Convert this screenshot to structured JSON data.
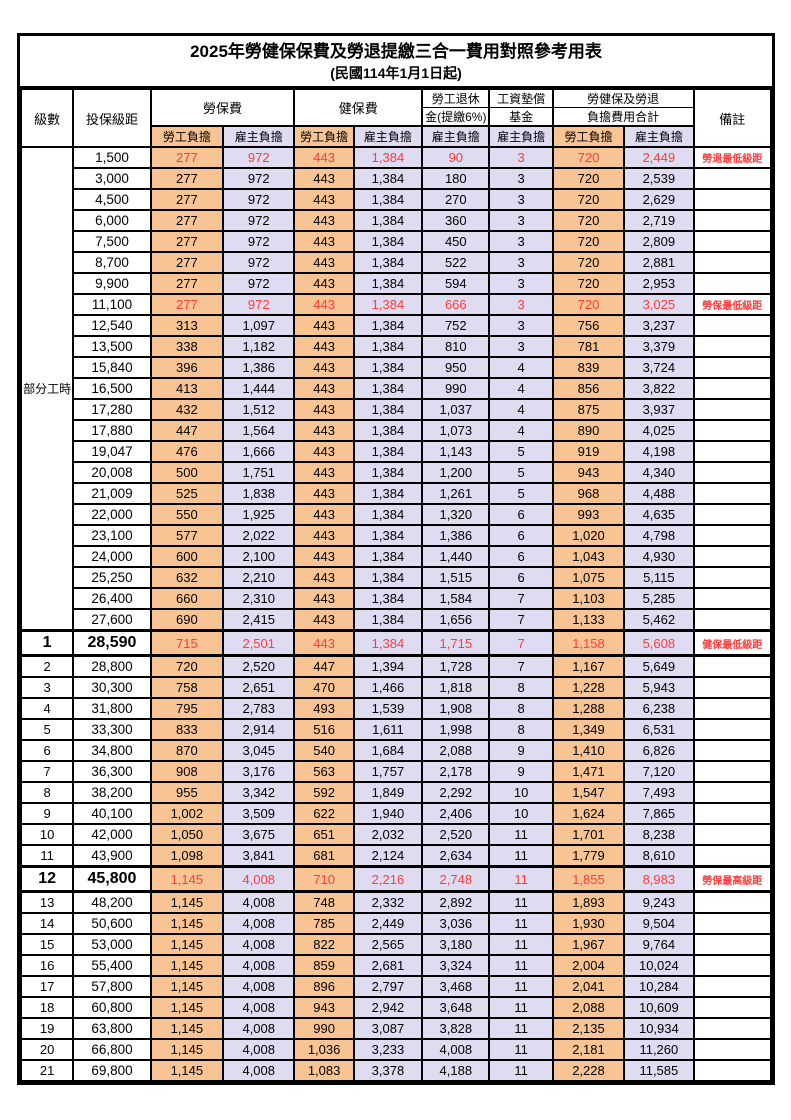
{
  "title": "2025年勞健保保費及勞退提繳三合一費用對照參考用表",
  "subtitle": "(民國114年1月1日起)",
  "header": {
    "level": "級數",
    "bracket": "投保級距",
    "labor_ins": "勞保費",
    "health_ins": "健保費",
    "pension_line1": "勞工退休",
    "pension_line2": "金(提繳6%)",
    "fund_line1": "工資墊償",
    "fund_line2": "基金",
    "total_line1": "勞健保及勞退",
    "total_line2": "負擔費用合計",
    "remark": "備註",
    "employee": "勞工負擔",
    "employer": "雇主負擔"
  },
  "part_time": {
    "label": "部分工時",
    "span": 23
  },
  "colors": {
    "employee_bg": "#F8C493",
    "employer_bg": "#DFDBF1",
    "highlight_text": "#FF3B3B",
    "border": "#000000"
  },
  "columns": [
    "level",
    "bracket",
    "labor_emp",
    "labor_er",
    "health_emp",
    "health_er",
    "pension_er",
    "fund_er",
    "total_emp",
    "total_er",
    "remark"
  ],
  "red_rows": [
    0,
    7,
    23,
    34
  ],
  "special_rows": [
    23,
    34
  ],
  "rows": [
    [
      "",
      "1,500",
      "277",
      "972",
      "443",
      "1,384",
      "90",
      "3",
      "720",
      "2,449",
      "勞退最低級距"
    ],
    [
      "",
      "3,000",
      "277",
      "972",
      "443",
      "1,384",
      "180",
      "3",
      "720",
      "2,539",
      ""
    ],
    [
      "",
      "4,500",
      "277",
      "972",
      "443",
      "1,384",
      "270",
      "3",
      "720",
      "2,629",
      ""
    ],
    [
      "",
      "6,000",
      "277",
      "972",
      "443",
      "1,384",
      "360",
      "3",
      "720",
      "2,719",
      ""
    ],
    [
      "",
      "7,500",
      "277",
      "972",
      "443",
      "1,384",
      "450",
      "3",
      "720",
      "2,809",
      ""
    ],
    [
      "",
      "8,700",
      "277",
      "972",
      "443",
      "1,384",
      "522",
      "3",
      "720",
      "2,881",
      ""
    ],
    [
      "",
      "9,900",
      "277",
      "972",
      "443",
      "1,384",
      "594",
      "3",
      "720",
      "2,953",
      ""
    ],
    [
      "",
      "11,100",
      "277",
      "972",
      "443",
      "1,384",
      "666",
      "3",
      "720",
      "3,025",
      "勞保最低級距"
    ],
    [
      "",
      "12,540",
      "313",
      "1,097",
      "443",
      "1,384",
      "752",
      "3",
      "756",
      "3,237",
      ""
    ],
    [
      "",
      "13,500",
      "338",
      "1,182",
      "443",
      "1,384",
      "810",
      "3",
      "781",
      "3,379",
      ""
    ],
    [
      "",
      "15,840",
      "396",
      "1,386",
      "443",
      "1,384",
      "950",
      "4",
      "839",
      "3,724",
      ""
    ],
    [
      "",
      "16,500",
      "413",
      "1,444",
      "443",
      "1,384",
      "990",
      "4",
      "856",
      "3,822",
      ""
    ],
    [
      "",
      "17,280",
      "432",
      "1,512",
      "443",
      "1,384",
      "1,037",
      "4",
      "875",
      "3,937",
      ""
    ],
    [
      "",
      "17,880",
      "447",
      "1,564",
      "443",
      "1,384",
      "1,073",
      "4",
      "890",
      "4,025",
      ""
    ],
    [
      "",
      "19,047",
      "476",
      "1,666",
      "443",
      "1,384",
      "1,143",
      "5",
      "919",
      "4,198",
      ""
    ],
    [
      "",
      "20,008",
      "500",
      "1,751",
      "443",
      "1,384",
      "1,200",
      "5",
      "943",
      "4,340",
      ""
    ],
    [
      "",
      "21,009",
      "525",
      "1,838",
      "443",
      "1,384",
      "1,261",
      "5",
      "968",
      "4,488",
      ""
    ],
    [
      "",
      "22,000",
      "550",
      "1,925",
      "443",
      "1,384",
      "1,320",
      "6",
      "993",
      "4,635",
      ""
    ],
    [
      "",
      "23,100",
      "577",
      "2,022",
      "443",
      "1,384",
      "1,386",
      "6",
      "1,020",
      "4,798",
      ""
    ],
    [
      "",
      "24,000",
      "600",
      "2,100",
      "443",
      "1,384",
      "1,440",
      "6",
      "1,043",
      "4,930",
      ""
    ],
    [
      "",
      "25,250",
      "632",
      "2,210",
      "443",
      "1,384",
      "1,515",
      "6",
      "1,075",
      "5,115",
      ""
    ],
    [
      "",
      "26,400",
      "660",
      "2,310",
      "443",
      "1,384",
      "1,584",
      "7",
      "1,103",
      "5,285",
      ""
    ],
    [
      "",
      "27,600",
      "690",
      "2,415",
      "443",
      "1,384",
      "1,656",
      "7",
      "1,133",
      "5,462",
      ""
    ],
    [
      "1",
      "28,590",
      "715",
      "2,501",
      "443",
      "1,384",
      "1,715",
      "7",
      "1,158",
      "5,608",
      "健保最低級距"
    ],
    [
      "2",
      "28,800",
      "720",
      "2,520",
      "447",
      "1,394",
      "1,728",
      "7",
      "1,167",
      "5,649",
      ""
    ],
    [
      "3",
      "30,300",
      "758",
      "2,651",
      "470",
      "1,466",
      "1,818",
      "8",
      "1,228",
      "5,943",
      ""
    ],
    [
      "4",
      "31,800",
      "795",
      "2,783",
      "493",
      "1,539",
      "1,908",
      "8",
      "1,288",
      "6,238",
      ""
    ],
    [
      "5",
      "33,300",
      "833",
      "2,914",
      "516",
      "1,611",
      "1,998",
      "8",
      "1,349",
      "6,531",
      ""
    ],
    [
      "6",
      "34,800",
      "870",
      "3,045",
      "540",
      "1,684",
      "2,088",
      "9",
      "1,410",
      "6,826",
      ""
    ],
    [
      "7",
      "36,300",
      "908",
      "3,176",
      "563",
      "1,757",
      "2,178",
      "9",
      "1,471",
      "7,120",
      ""
    ],
    [
      "8",
      "38,200",
      "955",
      "3,342",
      "592",
      "1,849",
      "2,292",
      "10",
      "1,547",
      "7,493",
      ""
    ],
    [
      "9",
      "40,100",
      "1,002",
      "3,509",
      "622",
      "1,940",
      "2,406",
      "10",
      "1,624",
      "7,865",
      ""
    ],
    [
      "10",
      "42,000",
      "1,050",
      "3,675",
      "651",
      "2,032",
      "2,520",
      "11",
      "1,701",
      "8,238",
      ""
    ],
    [
      "11",
      "43,900",
      "1,098",
      "3,841",
      "681",
      "2,124",
      "2,634",
      "11",
      "1,779",
      "8,610",
      ""
    ],
    [
      "12",
      "45,800",
      "1,145",
      "4,008",
      "710",
      "2,216",
      "2,748",
      "11",
      "1,855",
      "8,983",
      "勞保最高級距"
    ],
    [
      "13",
      "48,200",
      "1,145",
      "4,008",
      "748",
      "2,332",
      "2,892",
      "11",
      "1,893",
      "9,243",
      ""
    ],
    [
      "14",
      "50,600",
      "1,145",
      "4,008",
      "785",
      "2,449",
      "3,036",
      "11",
      "1,930",
      "9,504",
      ""
    ],
    [
      "15",
      "53,000",
      "1,145",
      "4,008",
      "822",
      "2,565",
      "3,180",
      "11",
      "1,967",
      "9,764",
      ""
    ],
    [
      "16",
      "55,400",
      "1,145",
      "4,008",
      "859",
      "2,681",
      "3,324",
      "11",
      "2,004",
      "10,024",
      ""
    ],
    [
      "17",
      "57,800",
      "1,145",
      "4,008",
      "896",
      "2,797",
      "3,468",
      "11",
      "2,041",
      "10,284",
      ""
    ],
    [
      "18",
      "60,800",
      "1,145",
      "4,008",
      "943",
      "2,942",
      "3,648",
      "11",
      "2,088",
      "10,609",
      ""
    ],
    [
      "19",
      "63,800",
      "1,145",
      "4,008",
      "990",
      "3,087",
      "3,828",
      "11",
      "2,135",
      "10,934",
      ""
    ],
    [
      "20",
      "66,800",
      "1,145",
      "4,008",
      "1,036",
      "3,233",
      "4,008",
      "11",
      "2,181",
      "11,260",
      ""
    ],
    [
      "21",
      "69,800",
      "1,145",
      "4,008",
      "1,083",
      "3,378",
      "4,188",
      "11",
      "2,228",
      "11,585",
      ""
    ]
  ]
}
